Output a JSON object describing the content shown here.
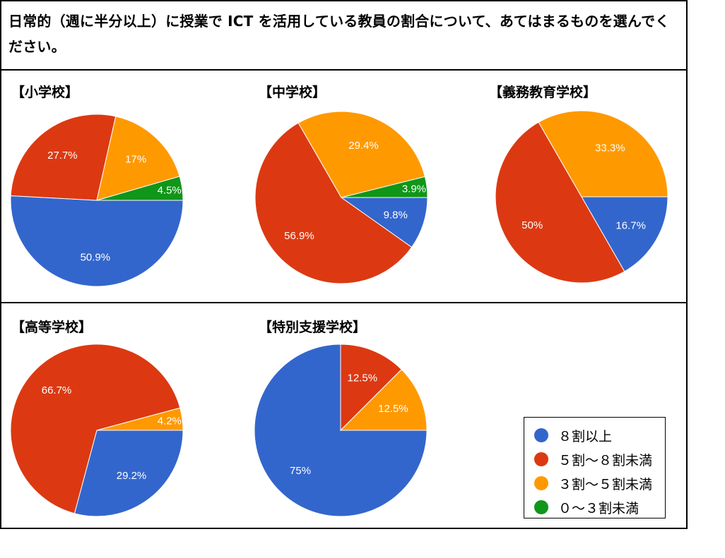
{
  "question": "日常的（週に半分以上）に授業で ICT を活用している教員の割合について、あてはまるものを選んでください。",
  "legend": [
    {
      "label": "８割以上",
      "color": "#3366cc"
    },
    {
      "label": "５割～８割未満",
      "color": "#dc3912"
    },
    {
      "label": "３割～５割未満",
      "color": "#ff9900"
    },
    {
      "label": "０～３割未満",
      "color": "#109618"
    }
  ],
  "chart_data": [
    {
      "type": "pie",
      "title": "【小学校】",
      "categories": [
        "８割以上",
        "５割～８割未満",
        "３割～５割未満",
        "０～３割未満"
      ],
      "values": [
        50.9,
        27.7,
        17,
        4.5
      ],
      "labels": [
        "50.9%",
        "27.7%",
        "17%",
        "4.5%"
      ]
    },
    {
      "type": "pie",
      "title": "【中学校】",
      "categories": [
        "８割以上",
        "５割～８割未満",
        "３割～５割未満",
        "０～３割未満"
      ],
      "values": [
        9.8,
        56.9,
        29.4,
        3.9
      ],
      "labels": [
        "9.8%",
        "56.9%",
        "29.4%",
        "3.9%"
      ]
    },
    {
      "type": "pie",
      "title": "【義務教育学校】",
      "categories": [
        "８割以上",
        "５割～８割未満",
        "３割～５割未満",
        "０～３割未満"
      ],
      "values": [
        16.7,
        50,
        33.3,
        0
      ],
      "labels": [
        "16.7%",
        "50%",
        "33.3%",
        ""
      ]
    },
    {
      "type": "pie",
      "title": "【高等学校】",
      "categories": [
        "８割以上",
        "５割～８割未満",
        "３割～５割未満",
        "０～３割未満"
      ],
      "values": [
        29.2,
        66.7,
        4.2,
        0
      ],
      "labels": [
        "29.2%",
        "66.7%",
        "4.2%",
        ""
      ]
    },
    {
      "type": "pie",
      "title": "【特別支援学校】",
      "categories": [
        "８割以上",
        "５割～８割未満",
        "３割～５割未満",
        "０～３割未満"
      ],
      "values": [
        75,
        12.5,
        12.5,
        0
      ],
      "labels": [
        "75%",
        "12.5%",
        "12.5%",
        ""
      ]
    }
  ]
}
